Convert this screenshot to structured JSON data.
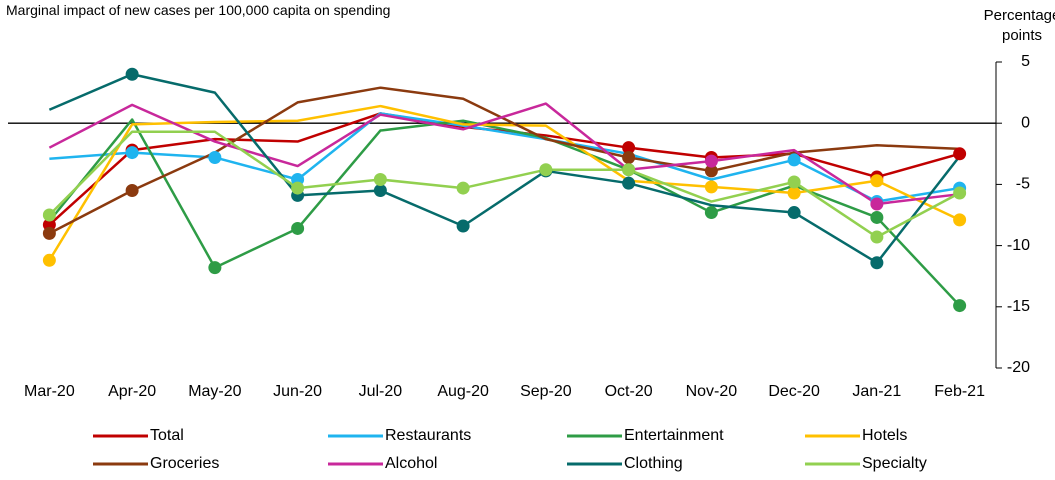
{
  "chart_data": {
    "type": "line",
    "title": "Marginal impact of new cases per 100,000 capita on spending",
    "y_label": "Percentage points",
    "categories": [
      "Mar-20",
      "Apr-20",
      "May-20",
      "Jun-20",
      "Jul-20",
      "Aug-20",
      "Sep-20",
      "Oct-20",
      "Nov-20",
      "Dec-20",
      "Jan-21",
      "Feb-21"
    ],
    "ylim": [
      -20,
      5
    ],
    "yticks": [
      -20,
      -15,
      -10,
      -5,
      0,
      5
    ],
    "y_axis_side": "right",
    "grid": false,
    "series": [
      {
        "name": "Total",
        "color": "#c00000",
        "values": [
          -8.3,
          -2.2,
          -1.3,
          -1.5,
          0.8,
          -0.3,
          -1,
          -2,
          -2.8,
          -2.5,
          -4.4,
          -2.5
        ],
        "markers": [
          true,
          true,
          false,
          false,
          false,
          false,
          false,
          true,
          true,
          false,
          true,
          true
        ]
      },
      {
        "name": "Restaurants",
        "color": "#1fb4ef",
        "values": [
          -2.9,
          -2.4,
          -2.8,
          -4.6,
          0.8,
          -0.2,
          -1.3,
          -2.5,
          -4.6,
          -3.0,
          -6.4,
          -5.3
        ],
        "markers": [
          false,
          true,
          true,
          true,
          false,
          false,
          false,
          false,
          false,
          true,
          true,
          true
        ]
      },
      {
        "name": "Entertainment",
        "color": "#2e9c46",
        "values": [
          -8,
          0.3,
          -11.8,
          -8.6,
          -0.6,
          0.2,
          -1.2,
          -3.8,
          -7.3,
          -5.1,
          -7.7,
          -14.9
        ],
        "markers": [
          false,
          false,
          true,
          true,
          false,
          false,
          false,
          true,
          true,
          false,
          true,
          true
        ]
      },
      {
        "name": "Hotels",
        "color": "#ffc000",
        "values": [
          -11.2,
          -0.1,
          0.1,
          0.2,
          1.4,
          -0.1,
          -0.2,
          -4.7,
          -5.2,
          -5.7,
          -4.7,
          -7.9
        ],
        "markers": [
          true,
          false,
          false,
          false,
          false,
          false,
          false,
          false,
          true,
          true,
          true,
          true
        ]
      },
      {
        "name": "Groceries",
        "color": "#8b3a0f",
        "values": [
          -9,
          -5.5,
          -2.4,
          1.7,
          2.9,
          2.0,
          -1.3,
          -2.8,
          -3.9,
          -2.4,
          -1.8,
          -2.1
        ],
        "markers": [
          true,
          true,
          false,
          false,
          false,
          false,
          false,
          true,
          true,
          false,
          false,
          false
        ]
      },
      {
        "name": "Alcohol",
        "color": "#c8289b",
        "values": [
          -2,
          1.5,
          -1.5,
          -3.5,
          0.7,
          -0.5,
          1.6,
          -3.8,
          -3.1,
          -2.2,
          -6.6,
          -5.8
        ],
        "markers": [
          false,
          false,
          false,
          false,
          false,
          false,
          false,
          false,
          true,
          false,
          true,
          false
        ]
      },
      {
        "name": "Clothing",
        "color": "#066b6b",
        "values": [
          1.1,
          4,
          2.5,
          -5.9,
          -5.5,
          -8.4,
          -3.9,
          -4.9,
          -6.7,
          -7.3,
          -11.4,
          -2.7
        ],
        "markers": [
          false,
          true,
          false,
          true,
          true,
          true,
          true,
          true,
          false,
          true,
          true,
          false
        ]
      },
      {
        "name": "Specialty",
        "color": "#92d050",
        "values": [
          -7.5,
          -0.7,
          -0.7,
          -5.3,
          -4.6,
          -5.3,
          -3.8,
          -3.8,
          -6.4,
          -4.8,
          -9.3,
          -5.7
        ],
        "markers": [
          true,
          false,
          false,
          true,
          true,
          true,
          true,
          true,
          false,
          true,
          true,
          true
        ]
      }
    ]
  }
}
